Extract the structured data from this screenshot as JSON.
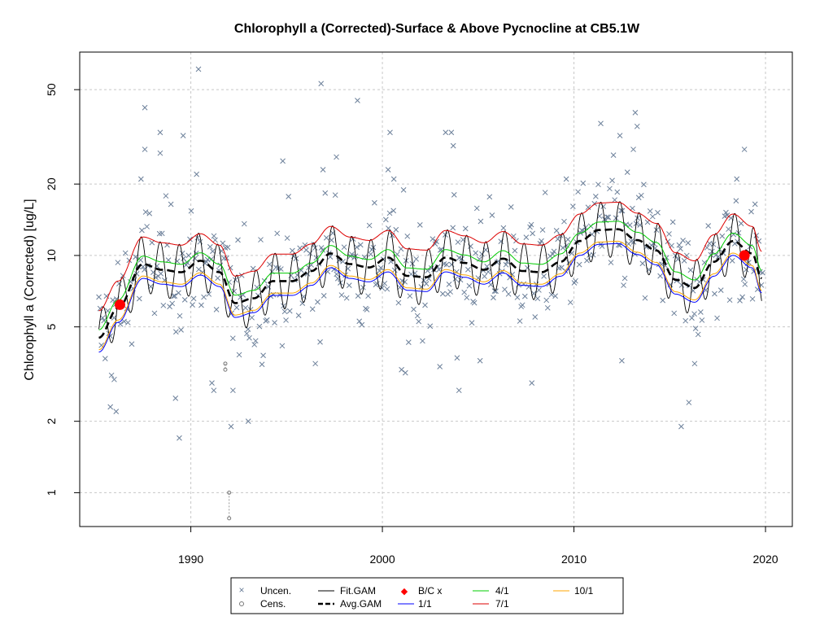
{
  "chart_data": {
    "type": "scatter",
    "title": "Chlorophyll a (Corrected)-Surface & Above Pycnocline at CB5.1W",
    "xlabel": "",
    "ylabel": "Chlorophyll a (Corrected) [ug/L]",
    "log_y": true,
    "xlim": [
      1984.2,
      2021.4
    ],
    "ylim": [
      0.72,
      72
    ],
    "x_ticks": [
      1990,
      2000,
      2010,
      2020
    ],
    "y_ticks": [
      1,
      2,
      5,
      10,
      20,
      50
    ],
    "grid": "dotted",
    "legend_position": "bottom",
    "legend": {
      "uncen": "Uncen.",
      "cens": "Cens.",
      "fit_gam": "Fit.GAM",
      "avg_gam": "Avg.GAM",
      "bcx": "B/C x",
      "r11": "1/1",
      "r41": "4/1",
      "r71": "7/1",
      "r101": "10/1"
    },
    "colors": {
      "points": "#6b7f99",
      "fit": "#000000",
      "avg": "#000000",
      "bcx": "#ff0000",
      "r11": "#0000ff",
      "r41": "#00cc00",
      "r71": "#dd0000",
      "r101": "#ffa500",
      "grid": "#c8c8c8"
    },
    "avg_gam_knots": {
      "x": [
        1985.2,
        1986.2,
        1987.5,
        1988.5,
        1989.5,
        1990.5,
        1991.5,
        1992.3,
        1993.3,
        1994.3,
        1995.3,
        1996.3,
        1997.3,
        1998.3,
        1999.3,
        2000.3,
        2001.3,
        2002.3,
        2003.3,
        2004.3,
        2005.3,
        2006.3,
        2007.3,
        2008.3,
        2009.3,
        2010.3,
        2011.3,
        2012.3,
        2013.3,
        2014.3,
        2015.3,
        2016.3,
        2017.3,
        2018.3,
        2019.3,
        2019.8
      ],
      "y": [
        4.5,
        6.0,
        9.2,
        8.7,
        8.5,
        9.5,
        8.5,
        6.3,
        6.6,
        7.8,
        7.8,
        8.6,
        10.2,
        9.2,
        8.9,
        9.8,
        8.2,
        8.1,
        9.8,
        9.3,
        8.7,
        9.7,
        8.6,
        8.5,
        9.4,
        11.5,
        12.8,
        12.9,
        11.6,
        10.5,
        7.9,
        7.3,
        9.4,
        11.5,
        10.2,
        8.0
      ]
    },
    "bcx_points": {
      "x": [
        1986.3,
        2018.9
      ],
      "y": [
        6.2,
        10.0
      ]
    },
    "censored": [
      {
        "x": 1991.8,
        "y": 3.5
      },
      {
        "x": 1991.8,
        "y": 3.3
      },
      {
        "x": 1992.0,
        "y": 1.0
      },
      {
        "x": 1992.0,
        "y": 0.78
      }
    ],
    "uncensored_high": [
      {
        "x": 1990.4,
        "y": 61
      },
      {
        "x": 1996.8,
        "y": 53
      },
      {
        "x": 1998.7,
        "y": 45
      },
      {
        "x": 1987.6,
        "y": 42
      },
      {
        "x": 2013.2,
        "y": 40
      },
      {
        "x": 2011.4,
        "y": 36
      },
      {
        "x": 2013.3,
        "y": 35
      },
      {
        "x": 1988.4,
        "y": 33
      },
      {
        "x": 1989.6,
        "y": 32
      },
      {
        "x": 2003.3,
        "y": 33
      },
      {
        "x": 2003.6,
        "y": 33
      },
      {
        "x": 2000.4,
        "y": 33
      },
      {
        "x": 2012.4,
        "y": 32
      },
      {
        "x": 2003.7,
        "y": 29
      },
      {
        "x": 2018.9,
        "y": 28
      },
      {
        "x": 1987.6,
        "y": 28
      },
      {
        "x": 1997.6,
        "y": 26
      },
      {
        "x": 2013.1,
        "y": 28
      },
      {
        "x": 1988.4,
        "y": 27
      },
      {
        "x": 1994.8,
        "y": 25
      },
      {
        "x": 1996.9,
        "y": 23
      },
      {
        "x": 2000.3,
        "y": 23
      },
      {
        "x": 1990.3,
        "y": 22
      },
      {
        "x": 2000.6,
        "y": 21
      },
      {
        "x": 2009.6,
        "y": 21
      },
      {
        "x": 2018.5,
        "y": 21
      },
      {
        "x": 1987.4,
        "y": 21
      }
    ],
    "uncensored_low": [
      {
        "x": 1986.0,
        "y": 3.0
      },
      {
        "x": 1985.8,
        "y": 2.3
      },
      {
        "x": 1986.1,
        "y": 2.2
      },
      {
        "x": 1989.4,
        "y": 1.7
      },
      {
        "x": 1989.2,
        "y": 2.5
      },
      {
        "x": 1991.1,
        "y": 2.9
      },
      {
        "x": 1991.2,
        "y": 2.7
      },
      {
        "x": 1992.2,
        "y": 2.7
      },
      {
        "x": 1992.1,
        "y": 1.9
      },
      {
        "x": 1993.0,
        "y": 2.0
      },
      {
        "x": 2001.0,
        "y": 3.3
      },
      {
        "x": 2001.2,
        "y": 3.2
      },
      {
        "x": 2003.0,
        "y": 3.4
      },
      {
        "x": 2004.0,
        "y": 2.7
      },
      {
        "x": 2007.8,
        "y": 2.9
      },
      {
        "x": 2012.5,
        "y": 3.6
      },
      {
        "x": 2015.6,
        "y": 1.9
      },
      {
        "x": 2016.0,
        "y": 2.4
      },
      {
        "x": 2016.3,
        "y": 3.5
      },
      {
        "x": 1996.5,
        "y": 3.5
      },
      {
        "x": 2005.1,
        "y": 3.6
      },
      {
        "x": 2003.9,
        "y": 3.7
      }
    ]
  }
}
